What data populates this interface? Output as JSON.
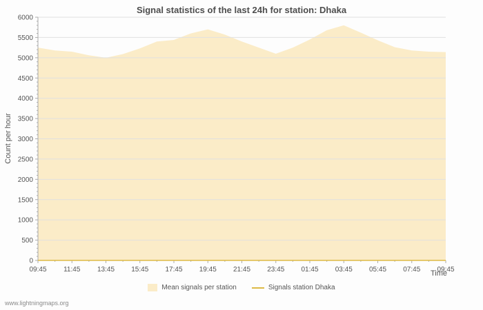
{
  "page": {
    "title": "Signal statistics of the last 24h for station: Dhaka",
    "watermark": "www.lightningmaps.org"
  },
  "chart_data": {
    "type": "area",
    "title": "Signal statistics of the last 24h for station: Dhaka",
    "xlabel": "Time",
    "ylabel": "Count per hour",
    "ylim": [
      0,
      6000
    ],
    "ytick_step": 500,
    "ytick_minor_step": 100,
    "grid": "horizontal",
    "legend_position": "bottom",
    "x_tick_labels": [
      "09:45",
      "11:45",
      "13:45",
      "15:45",
      "17:45",
      "19:45",
      "21:45",
      "23:45",
      "01:45",
      "03:45",
      "05:45",
      "07:45",
      "09:45"
    ],
    "x": [
      "09:45",
      "10:45",
      "11:45",
      "12:45",
      "13:45",
      "14:45",
      "15:45",
      "16:45",
      "17:45",
      "18:45",
      "19:45",
      "20:45",
      "21:45",
      "22:45",
      "23:45",
      "00:45",
      "01:45",
      "02:45",
      "03:45",
      "04:45",
      "05:45",
      "06:45",
      "07:45",
      "08:45",
      "09:45"
    ],
    "series": [
      {
        "name": "Mean signals per station",
        "type": "area",
        "color": "#fbecc8",
        "values": [
          5250,
          5180,
          5150,
          5060,
          5000,
          5090,
          5230,
          5400,
          5440,
          5600,
          5700,
          5570,
          5400,
          5250,
          5100,
          5250,
          5450,
          5680,
          5800,
          5620,
          5430,
          5260,
          5180,
          5150,
          5140
        ]
      },
      {
        "name": "Signals station Dhaka",
        "type": "line",
        "color": "#ddb945",
        "values": [
          0,
          0,
          0,
          0,
          0,
          0,
          0,
          0,
          0,
          0,
          0,
          0,
          0,
          0,
          0,
          0,
          0,
          0,
          0,
          0,
          0,
          0,
          0,
          0,
          0
        ]
      }
    ]
  },
  "legend": {
    "items": [
      {
        "label": "Mean signals per station",
        "color": "#fbecc8",
        "marker": "area"
      },
      {
        "label": "Signals station Dhaka",
        "color": "#ddb945",
        "marker": "line"
      }
    ]
  },
  "colors": {
    "grid": "#e0e0e0",
    "axis": "#aaaaaa",
    "text": "#555555",
    "title": "#4d4d4d",
    "background": "#fdfdfd"
  }
}
